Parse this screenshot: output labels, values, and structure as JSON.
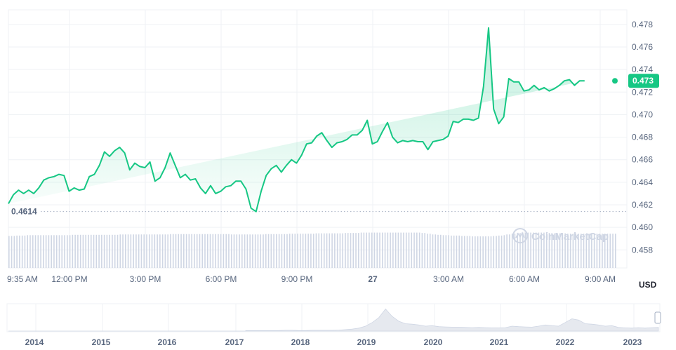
{
  "chart_data": {
    "type": "area",
    "title": "",
    "currency": "USD",
    "watermark": "CoinMarketCap",
    "colors": {
      "line": "#16c784",
      "fill": "#16c784",
      "volume": "#cfd6e4",
      "grid": "#eff2f5"
    },
    "ylim": [
      0.4564,
      0.4793
    ],
    "y_ticks": [
      "0.478",
      "0.476",
      "0.474",
      "0.472",
      "0.470",
      "0.468",
      "0.466",
      "0.464",
      "0.462",
      "0.460",
      "0.458"
    ],
    "x_ticks": [
      "9:35 AM",
      "12:00 PM",
      "3:00 PM",
      "6:00 PM",
      "9:00 PM",
      "27",
      "3:00 AM",
      "6:00 AM",
      "9:00 AM"
    ],
    "current_price": "0.473",
    "min_price_label": "0.4614",
    "min_price": 0.4614,
    "grid": true,
    "x_hours": [
      0,
      0.2,
      0.4,
      0.6,
      0.8,
      1,
      1.2,
      1.4,
      1.6,
      1.8,
      2,
      2.2,
      2.4,
      2.6,
      2.8,
      3,
      3.2,
      3.4,
      3.6,
      3.8,
      4,
      4.2,
      4.4,
      4.6,
      4.8,
      5,
      5.2,
      5.4,
      5.6,
      5.8,
      6,
      6.2,
      6.4,
      6.6,
      6.8,
      7,
      7.2,
      7.4,
      7.6,
      7.8,
      8,
      8.2,
      8.4,
      8.6,
      8.8,
      9,
      9.2,
      9.4,
      9.6,
      9.8,
      10,
      10.2,
      10.4,
      10.6,
      10.8,
      11,
      11.2,
      11.4,
      11.6,
      11.8,
      12,
      12.2,
      12.4,
      12.6,
      12.8,
      13,
      13.2,
      13.4,
      13.6,
      13.8,
      14,
      14.2,
      14.4,
      14.6,
      14.8,
      15,
      15.2,
      15.4,
      15.6,
      15.8,
      16,
      16.2,
      16.4,
      16.6,
      16.8,
      17,
      17.2,
      17.4,
      17.6,
      17.8,
      18,
      18.2,
      18.4,
      18.6,
      18.8,
      19,
      19.2,
      19.4,
      19.6,
      19.8,
      20,
      20.2,
      20.4,
      20.6,
      20.8,
      21,
      21.2,
      21.4,
      21.6,
      21.8,
      22,
      22.2,
      22.4,
      22.6,
      22.8,
      23,
      23.2,
      23.4,
      23.6,
      23.8,
      24
    ],
    "price": [
      0.4621,
      0.4629,
      0.4633,
      0.463,
      0.4633,
      0.463,
      0.4635,
      0.4642,
      0.4644,
      0.4645,
      0.4647,
      0.4646,
      0.4632,
      0.4635,
      0.4633,
      0.4634,
      0.4645,
      0.4647,
      0.4655,
      0.4667,
      0.4663,
      0.4668,
      0.4671,
      0.4666,
      0.4651,
      0.4657,
      0.4654,
      0.4653,
      0.4658,
      0.4641,
      0.4644,
      0.4653,
      0.4666,
      0.4655,
      0.4644,
      0.4647,
      0.4642,
      0.4643,
      0.4635,
      0.463,
      0.4637,
      0.463,
      0.4632,
      0.4636,
      0.4637,
      0.4641,
      0.4641,
      0.4634,
      0.4617,
      0.4614,
      0.4632,
      0.4646,
      0.4652,
      0.4655,
      0.4649,
      0.4655,
      0.466,
      0.4657,
      0.4664,
      0.4674,
      0.4675,
      0.4681,
      0.4684,
      0.4677,
      0.4671,
      0.4675,
      0.4676,
      0.4678,
      0.4682,
      0.4682,
      0.4686,
      0.4695,
      0.4674,
      0.4676,
      0.4685,
      0.4693,
      0.468,
      0.4675,
      0.4677,
      0.4676,
      0.4677,
      0.4676,
      0.4676,
      0.4669,
      0.4676,
      0.4677,
      0.4678,
      0.4681,
      0.4694,
      0.4693,
      0.4696,
      0.4696,
      0.4695,
      0.4697,
      0.4725,
      0.4777,
      0.4705,
      0.4692,
      0.4698,
      0.4732,
      0.4729,
      0.4729,
      0.4721,
      0.4722,
      0.4726,
      0.4722,
      0.4724,
      0.4721,
      0.4723,
      0.4726,
      0.473,
      0.4731,
      0.4726,
      0.473,
      0.473
    ],
    "volume_relative": [
      0.86,
      0.86,
      0.87,
      0.87,
      0.88,
      0.88,
      0.88,
      0.88,
      0.88,
      0.88,
      0.88,
      0.88,
      0.88,
      0.89,
      0.89,
      0.89,
      0.89,
      0.89,
      0.89,
      0.89,
      0.89,
      0.89,
      0.9,
      0.9,
      0.9,
      0.9,
      0.9,
      0.9,
      0.9,
      0.9,
      0.9,
      0.9,
      0.91,
      0.91,
      0.91,
      0.91,
      0.91,
      0.91,
      0.91,
      0.91,
      0.91,
      0.91,
      0.91,
      0.91,
      0.9,
      0.9,
      0.9,
      0.9,
      0.9,
      0.9,
      0.9,
      0.91,
      0.91,
      0.91,
      0.91,
      0.91,
      0.92,
      0.92,
      0.92,
      0.92,
      0.92,
      0.93,
      0.93,
      0.93,
      0.93,
      0.93,
      0.93,
      0.94,
      0.94,
      0.94,
      0.95,
      0.95,
      0.95,
      0.95,
      0.95,
      0.95,
      0.95,
      0.95,
      0.95,
      0.95,
      0.95,
      0.95,
      0.94,
      0.92,
      0.9,
      0.89,
      0.88,
      0.88,
      0.87,
      0.87,
      0.86,
      0.86,
      0.85,
      0.85,
      0.85,
      0.85,
      0.86,
      0.87,
      0.88,
      0.9,
      0.92,
      0.94,
      0.95,
      0.95,
      0.95,
      0.95,
      0.95,
      0.94,
      0.93,
      0.93,
      0.93,
      0.92,
      0.92,
      0.92,
      0.92
    ],
    "navigator": {
      "year_labels": [
        "2014",
        "2015",
        "2016",
        "2017",
        "2018",
        "2019",
        "2020",
        "2021",
        "2022",
        "2023"
      ],
      "history_relative": [
        0.02,
        0.02,
        0.02,
        0.02,
        0.02,
        0.02,
        0.03,
        0.03,
        0.02,
        0.02,
        0.03,
        0.03,
        0.03,
        0.03,
        0.04,
        0.06,
        0.08,
        0.12,
        0.2,
        0.35,
        0.55,
        0.9,
        0.6,
        0.4,
        0.3,
        0.28,
        0.25,
        0.2,
        0.22,
        0.18,
        0.17,
        0.16,
        0.16,
        0.15,
        0.14,
        0.15,
        0.14,
        0.13,
        0.13,
        0.14,
        0.2,
        0.18,
        0.17,
        0.16,
        0.2,
        0.25,
        0.22,
        0.2,
        0.35,
        0.5,
        0.45,
        0.3,
        0.28,
        0.25,
        0.2,
        0.22,
        0.15,
        0.13,
        0.12,
        0.14,
        0.12,
        0.14,
        0.15
      ]
    }
  }
}
